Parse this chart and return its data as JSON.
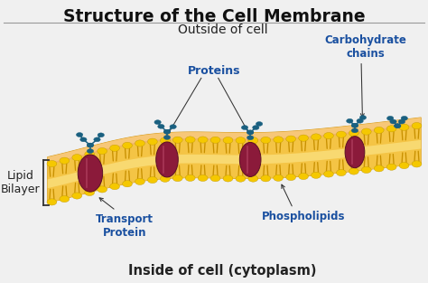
{
  "title": "Structure of the Cell Membrane",
  "title_fontsize": 13.5,
  "title_fontweight": "bold",
  "outside_label": "Outside of cell",
  "inside_label": "Inside of cell (cytoplasm)",
  "lipid_bilayer_label": "Lipid\nBilayer",
  "proteins_label": "Proteins",
  "transport_protein_label": "Transport\nProtein",
  "phospholipids_label": "Phospholipids",
  "carbohydrate_label": "Carbohydrate\nchains",
  "bg_color": "#f0f0f0",
  "membrane_body_color": "#f5c87a",
  "membrane_highlight": "#fce0a0",
  "phospholipid_head_color": "#f5c800",
  "phospholipid_tail_color": "#c89000",
  "protein_color": "#8B1A3A",
  "protein_edge": "#5a0f25",
  "protein_highlight": "#c0405a",
  "carbohydrate_color": "#1a6080",
  "label_color": "#1a50a0",
  "title_color": "#111111",
  "annotation_color": "#222222",
  "bracket_color": "#333333",
  "line_color": "#333333"
}
